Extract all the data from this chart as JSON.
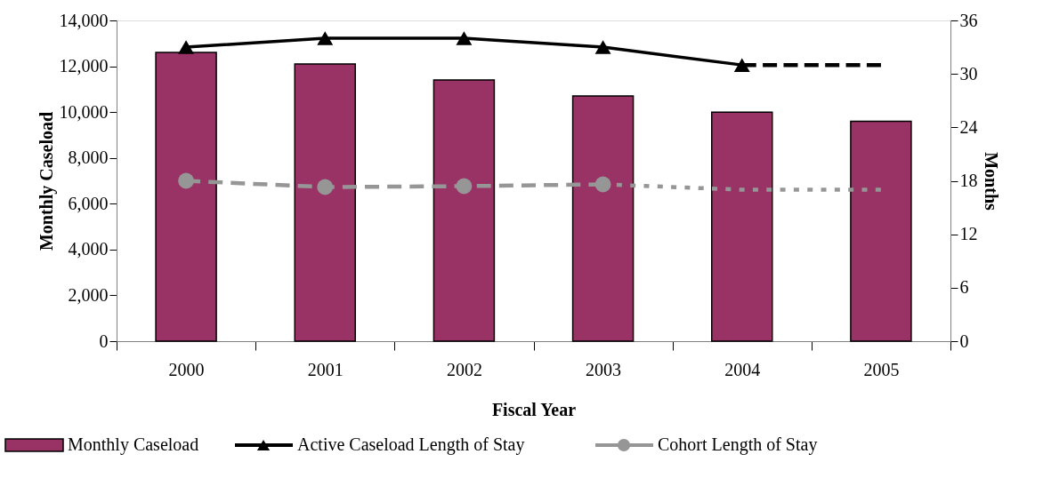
{
  "chart_data": {
    "type": "bar",
    "xlabel": "Fiscal Year",
    "ylabel": "Monthly Caseload",
    "y2label": "Months",
    "categories": [
      "2000",
      "2001",
      "2002",
      "2003",
      "2004",
      "2005"
    ],
    "ylim": [
      0,
      14000
    ],
    "yticks": [
      0,
      {
        "value": 2000,
        "label": "2,000"
      },
      {
        "value": 4000,
        "label": "4,000"
      },
      {
        "value": 6000,
        "label": "6,000"
      },
      {
        "value": 8000,
        "label": "8,000"
      },
      {
        "value": 10000,
        "label": "10,000"
      },
      {
        "value": 12000,
        "label": "12,000"
      },
      {
        "value": 14000,
        "label": "14,000"
      }
    ],
    "y2lim": [
      0,
      36
    ],
    "y2ticks": [
      0,
      6,
      12,
      18,
      24,
      30,
      36
    ],
    "grid": false,
    "legend": "bottom",
    "series": [
      {
        "name": "Monthly Caseload",
        "color": "#993366",
        "values": [
          12600,
          12100,
          11400,
          10700,
          10000,
          9600
        ]
      },
      {
        "name": "Active Caseload Length of Stay",
        "type": "line",
        "axis": "y2",
        "color": "#000000",
        "marker": "triangle",
        "line_style": "solid",
        "values": [
          33,
          34,
          34,
          33,
          31,
          null
        ]
      },
      {
        "type": "line",
        "axis": "y2",
        "color": "#000000",
        "marker": "none",
        "line_style": "dashed",
        "values": [
          null,
          null,
          null,
          null,
          31,
          31
        ]
      },
      {
        "name": "Cohort Length of Stay",
        "type": "line",
        "axis": "y2",
        "color": "#969696",
        "marker": "circle",
        "line_style": "dashed",
        "values": [
          18,
          17.3,
          17.4,
          17.6,
          null,
          null
        ]
      },
      {
        "type": "line",
        "axis": "y2",
        "color": "#969696",
        "marker": "none",
        "line_style": "dotted",
        "values": [
          null,
          null,
          null,
          17.6,
          17,
          17
        ]
      }
    ]
  }
}
